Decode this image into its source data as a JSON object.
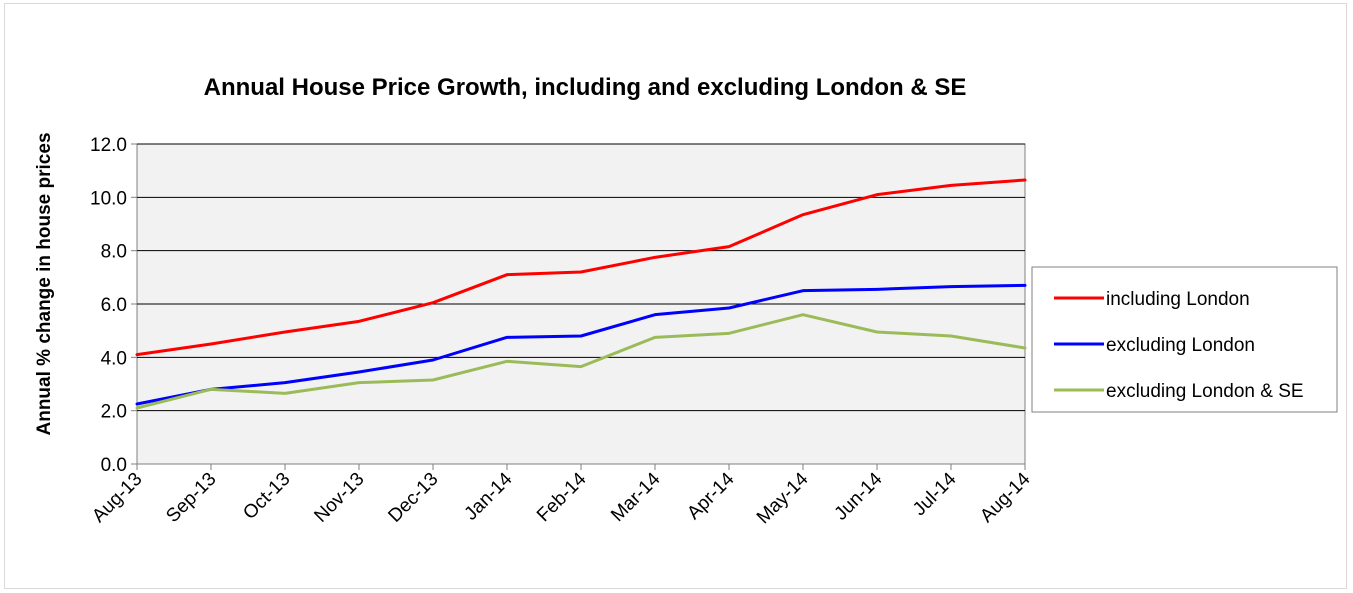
{
  "chart_data": {
    "type": "line",
    "title": "Annual House Price Growth, including and excluding London & SE",
    "xlabel": "",
    "ylabel": "Annual % change in house prices",
    "categories": [
      "Aug-13",
      "Sep-13",
      "Oct-13",
      "Nov-13",
      "Dec-13",
      "Jan-14",
      "Feb-14",
      "Mar-14",
      "Apr-14",
      "May-14",
      "Jun-14",
      "Jul-14",
      "Aug-14"
    ],
    "yticks": [
      "0.0",
      "2.0",
      "4.0",
      "6.0",
      "8.0",
      "10.0",
      "12.0"
    ],
    "ylim": [
      0,
      12
    ],
    "grid": true,
    "legend_position": "right",
    "plot_background": "#f2f2f2",
    "series": [
      {
        "name": "including London",
        "color": "#ff0000",
        "values": [
          4.1,
          4.5,
          4.95,
          5.35,
          6.05,
          7.1,
          7.2,
          7.75,
          8.15,
          9.35,
          10.1,
          10.45,
          10.65
        ]
      },
      {
        "name": "excluding London",
        "color": "#0000ff",
        "values": [
          2.25,
          2.8,
          3.05,
          3.45,
          3.9,
          4.75,
          4.8,
          5.6,
          5.85,
          6.5,
          6.55,
          6.65,
          6.7
        ]
      },
      {
        "name": "excluding London & SE",
        "color": "#9bbb59",
        "values": [
          2.1,
          2.8,
          2.65,
          3.05,
          3.15,
          3.85,
          3.65,
          4.75,
          4.9,
          5.6,
          4.95,
          4.8,
          4.35
        ]
      }
    ]
  }
}
